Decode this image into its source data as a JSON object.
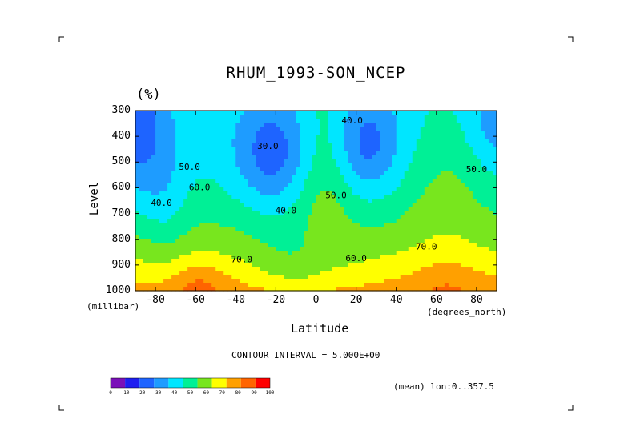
{
  "corner_marks": true,
  "chart_data": {
    "type": "heatmap",
    "title": "RHUM_1993-SON_NCEP",
    "units": "(%)",
    "xlabel": "Latitude",
    "x_units": "(degrees_north)",
    "ylabel": "Level",
    "y_units": "(millibar)",
    "xlim": [
      -90,
      90
    ],
    "ylim": [
      1000,
      300
    ],
    "x_ticks": [
      "-80",
      "-60",
      "-40",
      "-20",
      "0",
      "20",
      "40",
      "60",
      "80"
    ],
    "x_tick_values": [
      -80,
      -60,
      -40,
      -20,
      0,
      20,
      40,
      60,
      80
    ],
    "y_ticks": [
      "300",
      "400",
      "500",
      "600",
      "700",
      "800",
      "900",
      "1000"
    ],
    "y_tick_values": [
      300,
      400,
      500,
      600,
      700,
      800,
      900,
      1000
    ],
    "contour_interval_text": "CONTOUR INTERVAL = 5.000E+00",
    "mean_text": "(mean) lon:0..357.5",
    "contour_labels": [
      {
        "text": "30.0",
        "lat": -24,
        "lev": 450
      },
      {
        "text": "40.0",
        "lat": 18,
        "lev": 350
      },
      {
        "text": "40.0",
        "lat": -15,
        "lev": 700
      },
      {
        "text": "50.0",
        "lat": -63,
        "lev": 530
      },
      {
        "text": "40.0",
        "lat": -77,
        "lev": 670
      },
      {
        "text": "60.0",
        "lat": -58,
        "lev": 610
      },
      {
        "text": "50.0",
        "lat": 10,
        "lev": 640
      },
      {
        "text": "50.0",
        "lat": 80,
        "lev": 540
      },
      {
        "text": "70.0",
        "lat": -37,
        "lev": 890
      },
      {
        "text": "60.0",
        "lat": 20,
        "lev": 885
      },
      {
        "text": "70.0",
        "lat": 55,
        "lev": 840
      }
    ],
    "colorbar": {
      "levels": [
        0,
        10,
        20,
        30,
        40,
        50,
        60,
        70,
        80,
        90,
        100
      ],
      "labels": [
        "0",
        "10",
        "20",
        "30",
        "40",
        "50",
        "60",
        "70",
        "80",
        "90",
        "100"
      ],
      "colors": [
        "#7a10b8",
        "#1e1ef0",
        "#1e64ff",
        "#1e9cff",
        "#00e6ff",
        "#00f096",
        "#78e61e",
        "#ffff00",
        "#ffa000",
        "#ff6400",
        "#ff0000"
      ]
    }
  }
}
